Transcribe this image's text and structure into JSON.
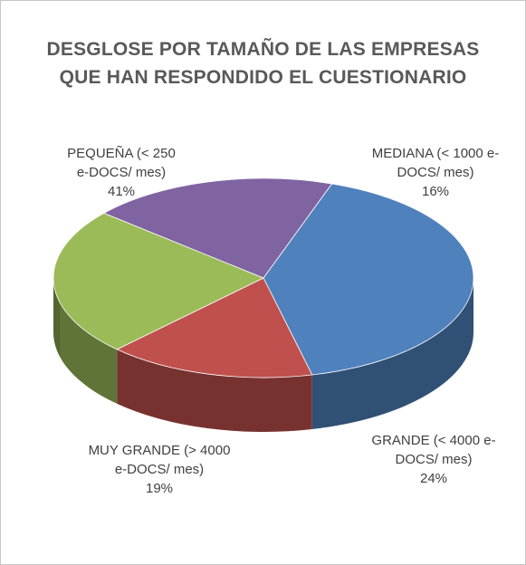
{
  "chart_data": {
    "type": "pie",
    "title_lines": [
      "DESGLOSE POR TAMAÑO DE LAS EMPRESAS",
      "QUE HAN RESPONDIDO EL CUESTIONARIO"
    ],
    "slices": [
      {
        "label_lines": [
          "PEQUEÑA (< 250",
          "e-DOCS/ mes)"
        ],
        "value": 41,
        "value_label": "41%",
        "color": "#4f81bd"
      },
      {
        "label_lines": [
          "MEDIANA (< 1000 e-",
          "DOCS/ mes)"
        ],
        "value": 16,
        "value_label": "16%",
        "color": "#c0504d"
      },
      {
        "label_lines": [
          "GRANDE (< 4000 e-",
          "DOCS/ mes)"
        ],
        "value": 24,
        "value_label": "24%",
        "color": "#9bbb59"
      },
      {
        "label_lines": [
          "MUY GRANDE (> 4000",
          "e-DOCS/ mes)"
        ],
        "value": 19,
        "value_label": "19%",
        "color": "#8064a2"
      }
    ],
    "style": "3d-pie",
    "legend": "none"
  }
}
